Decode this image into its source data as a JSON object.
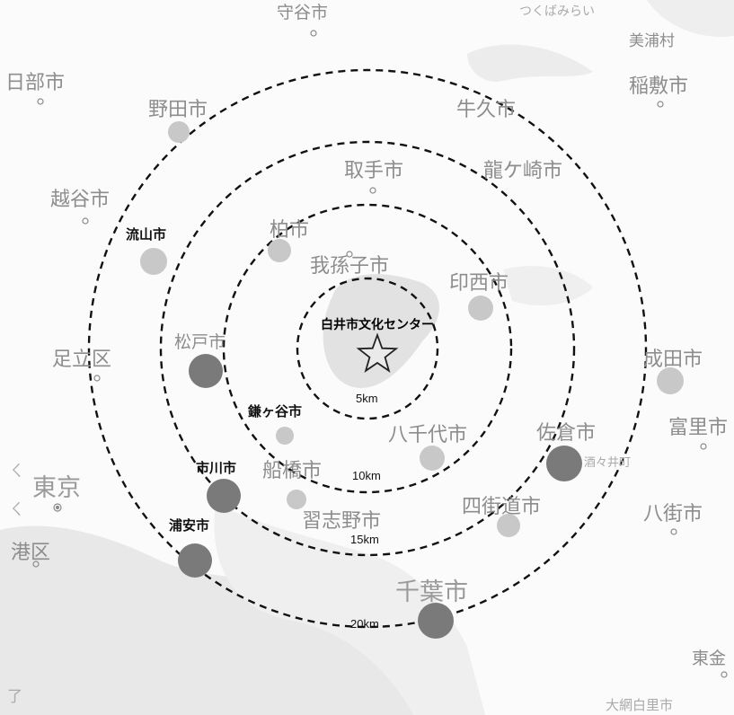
{
  "center": {
    "name": "白井市文化センター",
    "icon": "star-icon"
  },
  "rings": [
    {
      "label": "5km"
    },
    {
      "label": "10km"
    },
    {
      "label": "15km"
    },
    {
      "label": "20km"
    }
  ],
  "municipalities": {
    "kasukabe": "春日部市",
    "kasukabe_l": "日部市",
    "moriya": "守谷市",
    "tsukubamirai": "つくばみらい",
    "noda": "野田市",
    "ushiku": "牛久市",
    "inashiki": "稲敷市",
    "miho": "美浦村",
    "toride": "取手市",
    "ryugasaki": "龍ケ崎市",
    "koshigaya": "越谷市",
    "nagareyama": "流山市",
    "kashiwa": "柏市",
    "abiko": "我孫子市",
    "inzai": "印西市",
    "matsudo": "松戸市",
    "adachi": "足立区",
    "narita": "成田市",
    "kamagaya": "鎌ヶ谷市",
    "yachiyo": "八千代市",
    "sakura": "佐倉市",
    "tomisato": "富里市",
    "shisui": "酒々井町",
    "ichikawa": "市川市",
    "funabashi": "船橋市",
    "tokyo": "東京",
    "yotsukaido": "四街道市",
    "yachimata": "八街市",
    "urayasu": "浦安市",
    "narashino": "習志野市",
    "minato": "港区",
    "chiba": "千葉市",
    "togane": "東金",
    "oamishirasato": "大網白里市",
    "edge_left": "ㄑ",
    "edge_bottom": "了"
  },
  "colors": {
    "dot_light": "#c8c8c8",
    "dot_dark": "#7a7a7a",
    "ring": "#111111",
    "land_shade": "#e6e6e6"
  }
}
